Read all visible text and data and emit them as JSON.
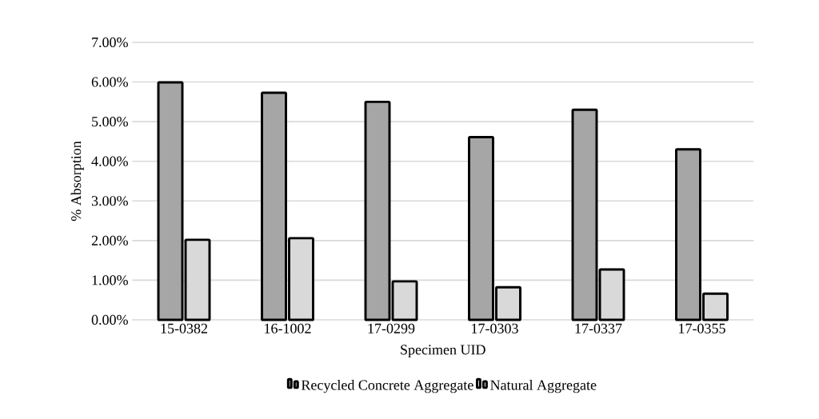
{
  "chart_data": {
    "type": "bar",
    "xlabel": "Specimen UID",
    "ylabel": "% Absorption",
    "categories": [
      "15-0382",
      "16-1002",
      "17-0299",
      "17-0303",
      "17-0337",
      "17-0355"
    ],
    "series": [
      {
        "name": "Recycled Concrete Aggregate",
        "color": "#a6a6a6",
        "values": [
          5.99,
          5.73,
          5.5,
          4.61,
          5.3,
          4.3
        ]
      },
      {
        "name": "Natural Aggregate",
        "color": "#d9d9d9",
        "values": [
          2.02,
          2.06,
          0.97,
          0.82,
          1.27,
          0.66
        ]
      }
    ],
    "ylim": [
      0,
      7
    ],
    "yticks": [
      {
        "value": 0,
        "label": "0.00%"
      },
      {
        "value": 1,
        "label": "1.00%"
      },
      {
        "value": 2,
        "label": "2.00%"
      },
      {
        "value": 3,
        "label": "3.00%"
      },
      {
        "value": 4,
        "label": "4.00%"
      },
      {
        "value": 5,
        "label": "5.00%"
      },
      {
        "value": 6,
        "label": "6.00%"
      },
      {
        "value": 7,
        "label": "7.00%"
      }
    ],
    "grid": "y",
    "legend": "bottom"
  }
}
